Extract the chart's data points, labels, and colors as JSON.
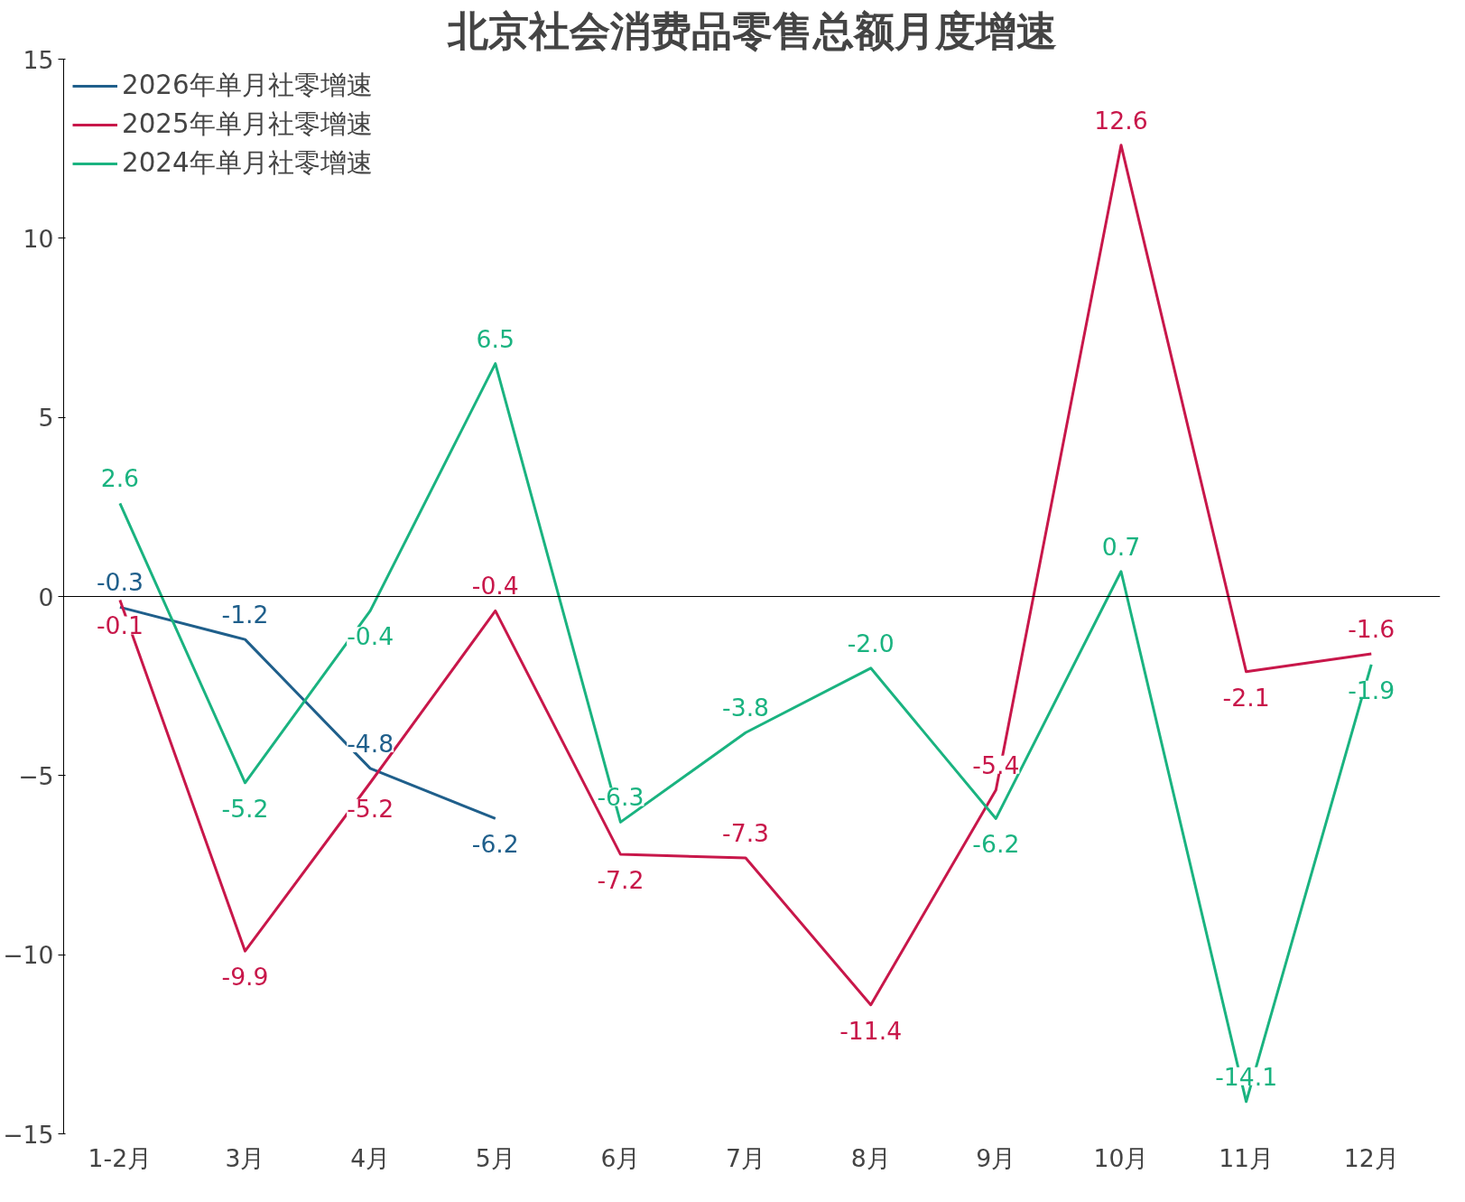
{
  "chart_data": {
    "type": "line",
    "title": "北京社会消费品零售总额月度增速",
    "categories": [
      "1-2月",
      "3月",
      "4月",
      "5月",
      "6月",
      "7月",
      "8月",
      "9月",
      "10月",
      "11月",
      "12月"
    ],
    "series": [
      {
        "name": "2026年单月社零增速",
        "color": "#1f5f8b",
        "values": [
          -0.3,
          -1.2,
          -4.8,
          -6.2,
          null,
          null,
          null,
          null,
          null,
          null,
          null
        ],
        "value_labels": [
          "-0.3",
          "-1.2",
          "-4.8",
          "-6.2",
          null,
          null,
          null,
          null,
          null,
          null,
          null
        ]
      },
      {
        "name": "2025年单月社零增速",
        "color": "#c8174a",
        "values": [
          -0.1,
          -9.9,
          -5.2,
          -0.4,
          -7.2,
          -7.3,
          -11.4,
          -5.4,
          12.6,
          -2.1,
          -1.6
        ],
        "value_labels": [
          "-0.1",
          "-9.9",
          "-5.2",
          "-0.4",
          "-7.2",
          "-7.3",
          "-11.4",
          "-5.4",
          "12.6",
          "-2.1",
          "-1.6"
        ]
      },
      {
        "name": "2024年单月社零增速",
        "color": "#1ab380",
        "values": [
          2.6,
          -5.2,
          -0.4,
          6.5,
          -6.3,
          -3.8,
          -2.0,
          -6.2,
          0.7,
          -14.1,
          -1.9
        ],
        "value_labels": [
          "2.6",
          "-5.2",
          "-0.4",
          "6.5",
          "-6.3",
          "-3.8",
          "-2.0",
          "-6.2",
          "0.7",
          "-14.1",
          "-1.9"
        ]
      }
    ],
    "ylim": [
      -15,
      15
    ],
    "yticks": [
      -15,
      -10,
      -5,
      0,
      5,
      10,
      15
    ],
    "ref_lines": [
      {
        "axis": "y",
        "value": 0,
        "color": "#000000"
      }
    ],
    "legend": "top left",
    "grid": false,
    "marker": "none",
    "line_style": "solid"
  }
}
